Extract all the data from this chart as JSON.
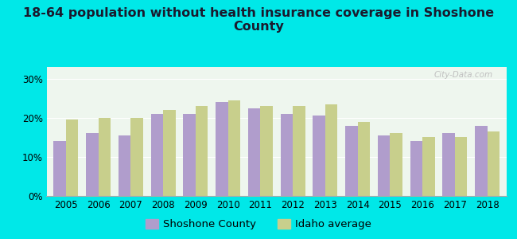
{
  "title": "18-64 population without health insurance coverage in Shoshone\nCounty",
  "years": [
    2005,
    2006,
    2007,
    2008,
    2009,
    2010,
    2011,
    2012,
    2013,
    2014,
    2015,
    2016,
    2017,
    2018
  ],
  "shoshone": [
    14,
    16,
    15.5,
    21,
    21,
    24,
    22.5,
    21,
    20.5,
    18,
    15.5,
    14,
    16,
    18
  ],
  "idaho": [
    19.5,
    20,
    20,
    22,
    23,
    24.5,
    23,
    23,
    23.5,
    19,
    16,
    15,
    15,
    16.5
  ],
  "shoshone_color": "#b09dcc",
  "idaho_color": "#c8cf8c",
  "background_outer": "#00e8e8",
  "background_inner": "#eef6ee",
  "yticks": [
    0,
    10,
    20,
    30
  ],
  "ytick_labels": [
    "0%",
    "10%",
    "20%",
    "30%"
  ],
  "ylim": [
    0,
    33
  ],
  "bar_width": 0.38,
  "legend_shoshone": "Shoshone County",
  "legend_idaho": "Idaho average",
  "title_fontsize": 11.5,
  "tick_fontsize": 8.5,
  "legend_fontsize": 9.5
}
